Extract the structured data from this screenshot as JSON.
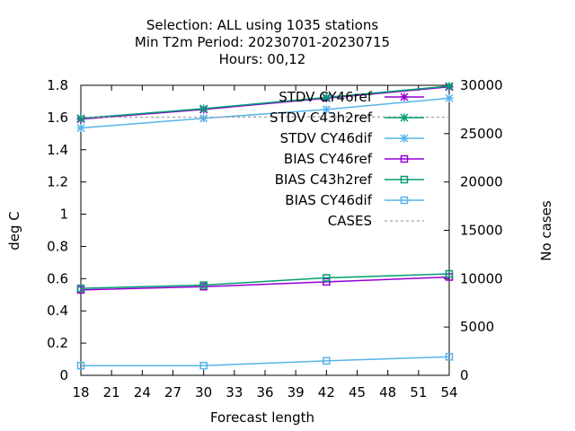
{
  "chart_data": {
    "type": "line",
    "title_lines": [
      "Selection: ALL using  1035 stations",
      "Min T2m   Period: 20230701-20230715",
      "Hours:  00,12"
    ],
    "xlabel": "Forecast length",
    "ylabel": "deg C",
    "y2label": "No cases",
    "xlim": [
      18,
      54
    ],
    "xticks": [
      18,
      21,
      24,
      27,
      30,
      33,
      36,
      39,
      42,
      45,
      48,
      51,
      54
    ],
    "ylim": [
      0,
      1.8
    ],
    "yticks": [
      "0",
      "0.2",
      "0.4",
      "0.6",
      "0.8",
      "1",
      "1.2",
      "1.4",
      "1.6",
      "1.8"
    ],
    "y2lim": [
      0,
      30000
    ],
    "y2ticks": [
      "0",
      "5000",
      "10000",
      "15000",
      "20000",
      "25000",
      "30000"
    ],
    "x": [
      18,
      30,
      42,
      54
    ],
    "legend_position": "top-right",
    "grid": false,
    "series": [
      {
        "name": "STDV CY46ref",
        "axis": "y",
        "marker": "x-star",
        "color": "#9400d3",
        "values": [
          1.59,
          1.65,
          1.72,
          1.79
        ]
      },
      {
        "name": "STDV C43h2ref",
        "axis": "y",
        "marker": "x-star",
        "color": "#009e73",
        "values": [
          1.595,
          1.655,
          1.725,
          1.795
        ]
      },
      {
        "name": "STDV CY46dif",
        "axis": "y",
        "marker": "x-star",
        "color": "#56b4e9",
        "values": [
          1.535,
          1.595,
          1.65,
          1.72
        ]
      },
      {
        "name": "BIAS CY46ref",
        "axis": "y",
        "marker": "square",
        "color": "#9400d3",
        "values": [
          0.53,
          0.55,
          0.58,
          0.61
        ]
      },
      {
        "name": "BIAS C43h2ref",
        "axis": "y",
        "marker": "square",
        "color": "#009e73",
        "values": [
          0.54,
          0.56,
          0.605,
          0.63
        ]
      },
      {
        "name": "BIAS CY46dif",
        "axis": "y",
        "marker": "square",
        "color": "#56b4e9",
        "values": [
          0.06,
          0.06,
          0.09,
          0.115
        ]
      },
      {
        "name": "CASES",
        "axis": "y2",
        "marker": "none",
        "dashed": true,
        "color": "#a0a0a0",
        "values": [
          26700,
          26700,
          26750,
          26700
        ]
      }
    ]
  }
}
